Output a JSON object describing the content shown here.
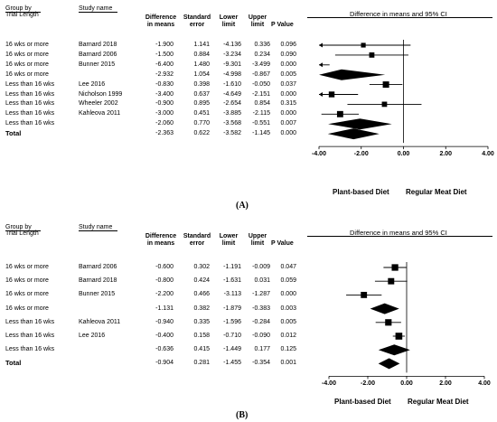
{
  "headers": {
    "group": "Group by",
    "group2": "Trial Length",
    "study": "Study name",
    "diff": [
      "Difference",
      "in means"
    ],
    "se": [
      "Standard",
      "error"
    ],
    "lower": [
      "Lower",
      "limit"
    ],
    "upper": [
      "Upper",
      "limit"
    ],
    "p": "P Value",
    "plot_title": "Difference in means and 95% CI",
    "legend_left": "Plant-based Diet",
    "legend_right": "Regular Meat Diet"
  },
  "chart_data": [
    {
      "type": "forest",
      "caption": "(A)",
      "xlim": [
        -4,
        4
      ],
      "ticks": [
        "-4.00",
        "-2.00",
        "0.00",
        "2.00",
        "4.00"
      ],
      "rows": [
        {
          "group": "16 wks or more",
          "study": "Barnard 2018",
          "diff": "-1.900",
          "se": "1.141",
          "lower": "-4.136",
          "upper": "0.336",
          "p": "0.096",
          "kind": "study"
        },
        {
          "group": "16 wks or more",
          "study": "Barnard 2006",
          "diff": "-1.500",
          "se": "0.884",
          "lower": "-3.234",
          "upper": "0.234",
          "p": "0.090",
          "kind": "study"
        },
        {
          "group": "16 wks or more",
          "study": "Bunner 2015",
          "diff": "-6.400",
          "se": "1.480",
          "lower": "-9.301",
          "upper": "-3.499",
          "p": "0.000",
          "kind": "study"
        },
        {
          "group": "16 wks or more",
          "study": "",
          "diff": "-2.932",
          "se": "1.054",
          "lower": "-4.998",
          "upper": "-0.867",
          "p": "0.005",
          "kind": "subtotal"
        },
        {
          "group": "Less than 16 wks",
          "study": "Lee 2016",
          "diff": "-0.830",
          "se": "0.398",
          "lower": "-1.610",
          "upper": "-0.050",
          "p": "0.037",
          "kind": "study"
        },
        {
          "group": "Less than 16 wks",
          "study": "Nicholson 1999",
          "diff": "-3.400",
          "se": "0.637",
          "lower": "-4.649",
          "upper": "-2.151",
          "p": "0.000",
          "kind": "study"
        },
        {
          "group": "Less than 16 wks",
          "study": "Wheeler 2002",
          "diff": "-0.900",
          "se": "0.895",
          "lower": "-2.654",
          "upper": "0.854",
          "p": "0.315",
          "kind": "study"
        },
        {
          "group": "Less than 16 wks",
          "study": "Kahleova 2011",
          "diff": "-3.000",
          "se": "0.451",
          "lower": "-3.885",
          "upper": "-2.115",
          "p": "0.000",
          "kind": "study"
        },
        {
          "group": "Less than 16 wks",
          "study": "",
          "diff": "-2.060",
          "se": "0.770",
          "lower": "-3.568",
          "upper": "-0.551",
          "p": "0.007",
          "kind": "subtotal"
        },
        {
          "group": "Total",
          "study": "",
          "diff": "-2.363",
          "se": "0.622",
          "lower": "-3.582",
          "upper": "-1.145",
          "p": "0.000",
          "kind": "total"
        }
      ]
    },
    {
      "type": "forest",
      "caption": "(B)",
      "xlim": [
        -4,
        4
      ],
      "ticks": [
        "-4.00",
        "-2.00",
        "0.00",
        "2.00",
        "4.00"
      ],
      "rows": [
        {
          "group": "16 wks or more",
          "study": "Barnard 2006",
          "diff": "-0.600",
          "se": "0.302",
          "lower": "-1.191",
          "upper": "-0.009",
          "p": "0.047",
          "kind": "study"
        },
        {
          "group": "16 wks or more",
          "study": "Barnard 2018",
          "diff": "-0.800",
          "se": "0.424",
          "lower": "-1.631",
          "upper": "0.031",
          "p": "0.059",
          "kind": "study"
        },
        {
          "group": "16 wks or more",
          "study": "Bunner 2015",
          "diff": "-2.200",
          "se": "0.466",
          "lower": "-3.113",
          "upper": "-1.287",
          "p": "0.000",
          "kind": "study"
        },
        {
          "group": "16 wks or more",
          "study": "",
          "diff": "-1.131",
          "se": "0.382",
          "lower": "-1.879",
          "upper": "-0.383",
          "p": "0.003",
          "kind": "subtotal"
        },
        {
          "group": "Less than 16 wks",
          "study": "Kahleova 2011",
          "diff": "-0.940",
          "se": "0.335",
          "lower": "-1.596",
          "upper": "-0.284",
          "p": "0.005",
          "kind": "study"
        },
        {
          "group": "Less than 16 wks",
          "study": "Lee 2016",
          "diff": "-0.400",
          "se": "0.158",
          "lower": "-0.710",
          "upper": "-0.090",
          "p": "0.012",
          "kind": "study"
        },
        {
          "group": "Less than 16 wks",
          "study": "",
          "diff": "-0.636",
          "se": "0.415",
          "lower": "-1.449",
          "upper": "0.177",
          "p": "0.125",
          "kind": "subtotal"
        },
        {
          "group": "Total",
          "study": "",
          "diff": "-0.904",
          "se": "0.281",
          "lower": "-1.455",
          "upper": "-0.354",
          "p": "0.001",
          "kind": "total"
        }
      ]
    }
  ]
}
